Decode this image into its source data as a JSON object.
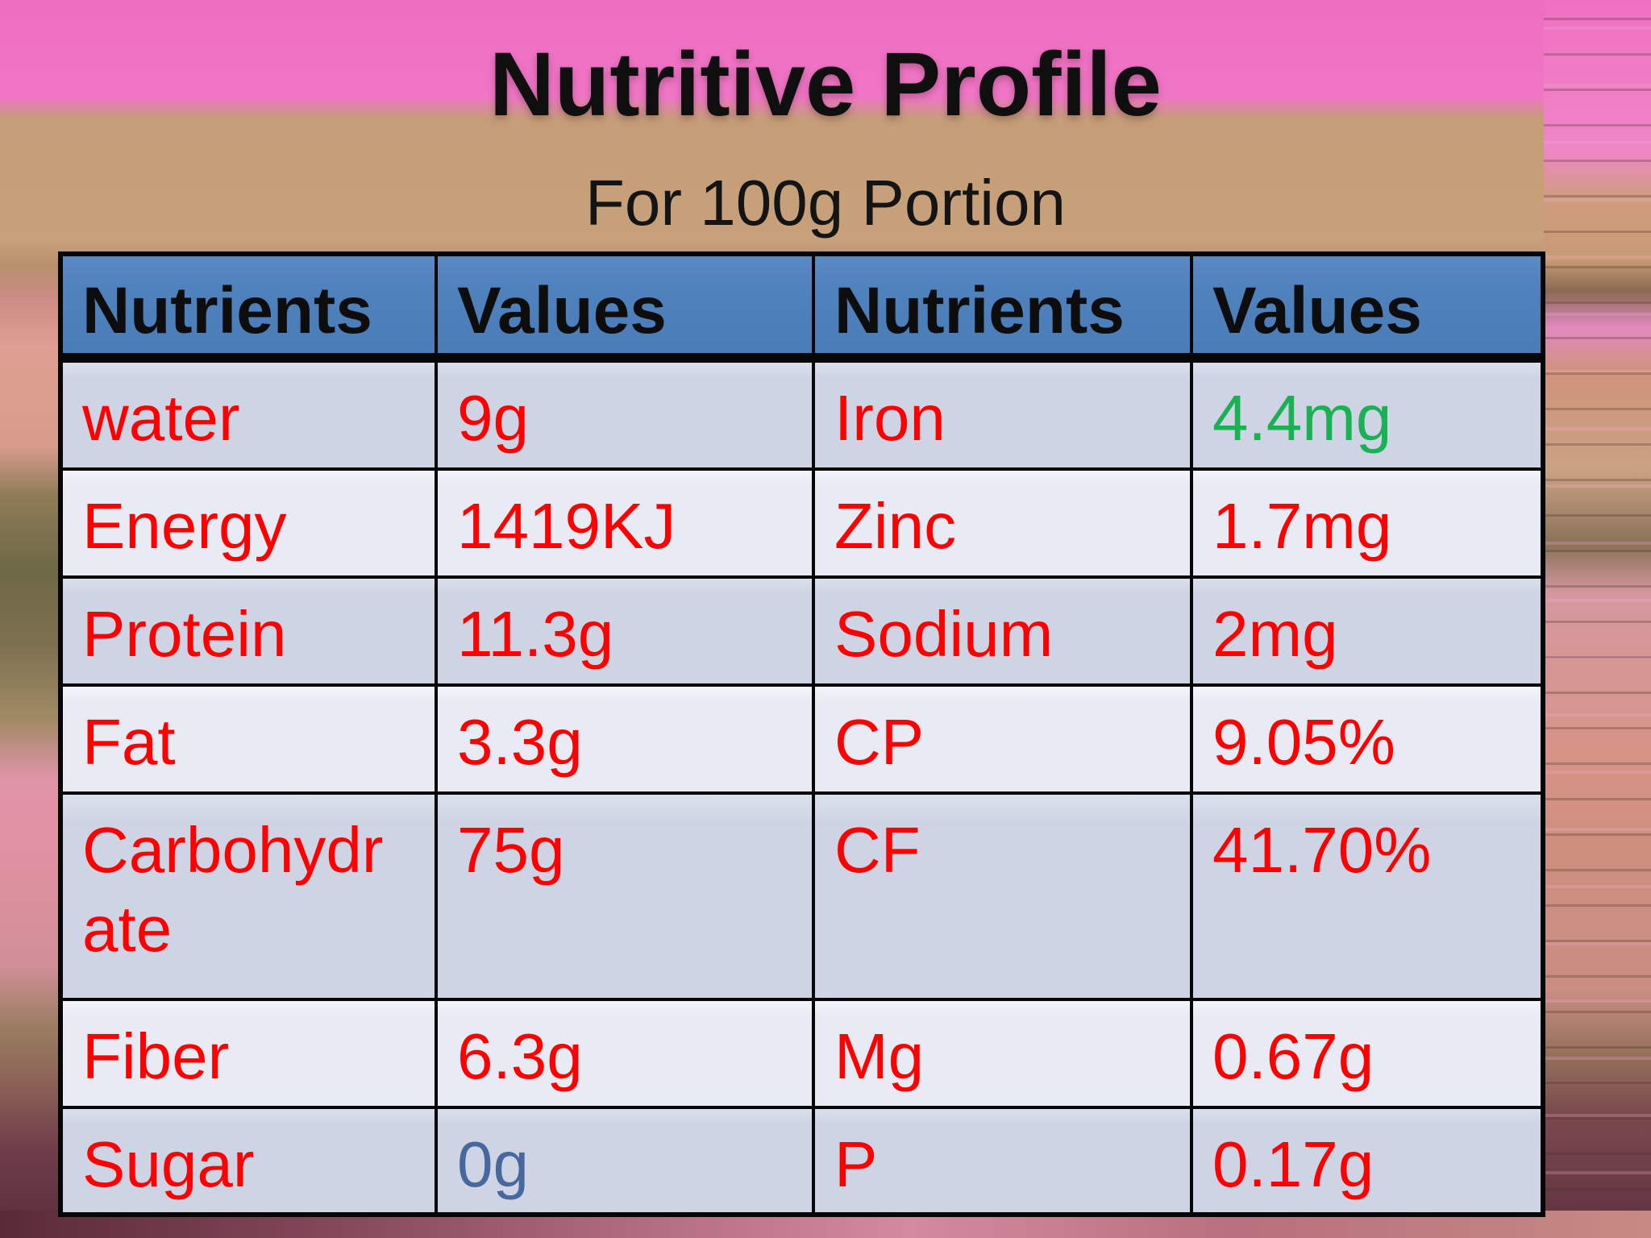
{
  "slide": {
    "title": "Nutritive Profile",
    "subtitle": "For 100g Portion"
  },
  "table": {
    "headers": [
      "Nutrients",
      "Values",
      "Nutrients",
      "Values"
    ],
    "rows": [
      [
        "water",
        "9g",
        "Iron",
        "4.4mg"
      ],
      [
        "Energy",
        "1419KJ",
        "Zinc",
        "1.7mg"
      ],
      [
        "Protein",
        "11.3g",
        "Sodium",
        "2mg"
      ],
      [
        "Fat",
        "3.3g",
        "CP",
        "9.05%"
      ],
      [
        "Carbohydrate",
        "75g",
        "CF",
        "41.70%"
      ],
      [
        "Fiber",
        "6.3g",
        "Mg",
        "0.67g"
      ],
      [
        "Sugar",
        "0g",
        "P",
        "0.17g"
      ]
    ]
  },
  "colors": {
    "header_bg": "#4f81bd",
    "row_band_dark": "#ced4e4",
    "row_band_light": "#e9ebf4",
    "value_red": "#fe0000",
    "iron_value_green": "#1ab155",
    "sugar_value_blue": "#47689c",
    "table_border": "#060606",
    "title_text": "#0f0f0f",
    "bg_pink": "#ee6ec2",
    "bg_tan": "#c7a17a"
  }
}
